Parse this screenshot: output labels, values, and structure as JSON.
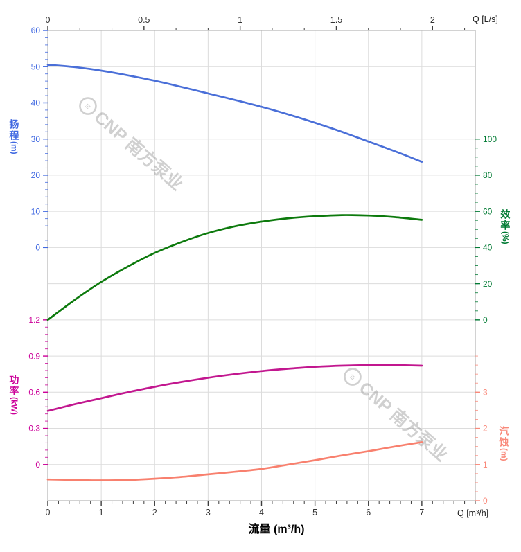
{
  "watermarks": [
    {
      "logo_glyph": "≡",
      "text": "CNP 南方泵业"
    },
    {
      "logo_glyph": "≡",
      "text": "CNP 南方泵业"
    }
  ],
  "chart_data": {
    "type": "line",
    "title": "",
    "x": [
      0,
      0.5,
      1,
      1.5,
      2,
      2.5,
      3,
      3.5,
      4,
      4.5,
      5,
      5.5,
      6,
      6.5,
      7
    ],
    "x_axis_bottom": {
      "title": "流量 (m³/h)",
      "unit_label": "Q [m³/h]",
      "tick_labels": [
        0,
        1,
        2,
        3,
        4,
        5,
        6,
        7
      ],
      "minor_step": 0.2,
      "range": [
        0,
        8
      ],
      "color": "#3c3c3c"
    },
    "x_axis_top": {
      "unit_label": "Q [L/s]",
      "tick_labels": [
        0,
        0.5,
        1,
        1.5,
        2
      ],
      "scale_to_bottom": 3.6,
      "color": "#3c3c3c"
    },
    "y_axes": [
      {
        "id": "head",
        "title": "扬程",
        "unit": "(m)",
        "side": "left",
        "color": "#4169e1",
        "tick_labels": [
          0,
          10,
          20,
          30,
          40,
          50,
          60
        ],
        "minor_step": 2,
        "range": [
          0,
          60
        ]
      },
      {
        "id": "power",
        "title": "功率",
        "unit": "(kW)",
        "side": "left",
        "color": "#cc0099",
        "tick_labels": [
          0,
          0.3,
          0.6,
          0.9,
          1.2
        ],
        "minor_step": 0.06,
        "range": [
          0,
          1.2
        ]
      },
      {
        "id": "efficiency",
        "title": "效率",
        "unit": "(%)",
        "side": "right",
        "color": "#007a33",
        "tick_labels": [
          0,
          20,
          40,
          60,
          80,
          100
        ],
        "minor_step": 5,
        "range": [
          0,
          100
        ]
      },
      {
        "id": "npsh",
        "title": "汽蚀",
        "unit": "(m)",
        "side": "right",
        "color": "#f9897a",
        "tick_labels": [
          0,
          1,
          2,
          3
        ],
        "minor_step": 0.25,
        "range": [
          0,
          4
        ]
      }
    ],
    "series": [
      {
        "name": "head",
        "label": "扬程",
        "axis": "head",
        "color": "#4a6fd8",
        "values": [
          50.5,
          49.9,
          48.9,
          47.6,
          46.1,
          44.4,
          42.6,
          40.8,
          38.9,
          36.8,
          34.5,
          32.0,
          29.3,
          26.6,
          23.7
        ]
      },
      {
        "name": "efficiency",
        "label": "效率",
        "axis": "efficiency",
        "color": "#0d7a0d",
        "values": [
          0,
          11,
          21,
          29.5,
          37,
          43,
          48,
          51.7,
          54.3,
          56.2,
          57.3,
          57.9,
          57.7,
          56.8,
          55.3
        ]
      },
      {
        "name": "power",
        "label": "功率",
        "axis": "power",
        "color": "#c2178f",
        "values": [
          0.445,
          0.5,
          0.55,
          0.6,
          0.645,
          0.685,
          0.72,
          0.75,
          0.775,
          0.795,
          0.81,
          0.82,
          0.825,
          0.825,
          0.82
        ]
      },
      {
        "name": "npsh",
        "label": "汽蚀",
        "axis": "npsh",
        "color": "#f8806e",
        "values": [
          0.59,
          0.575,
          0.565,
          0.575,
          0.61,
          0.66,
          0.73,
          0.8,
          0.88,
          1.0,
          1.12,
          1.25,
          1.37,
          1.5,
          1.62
        ]
      }
    ],
    "grid": {
      "color": "#dcdcdc",
      "frame_color": "#b5b5b5",
      "h_rows": 13,
      "v_cols": 8
    }
  }
}
